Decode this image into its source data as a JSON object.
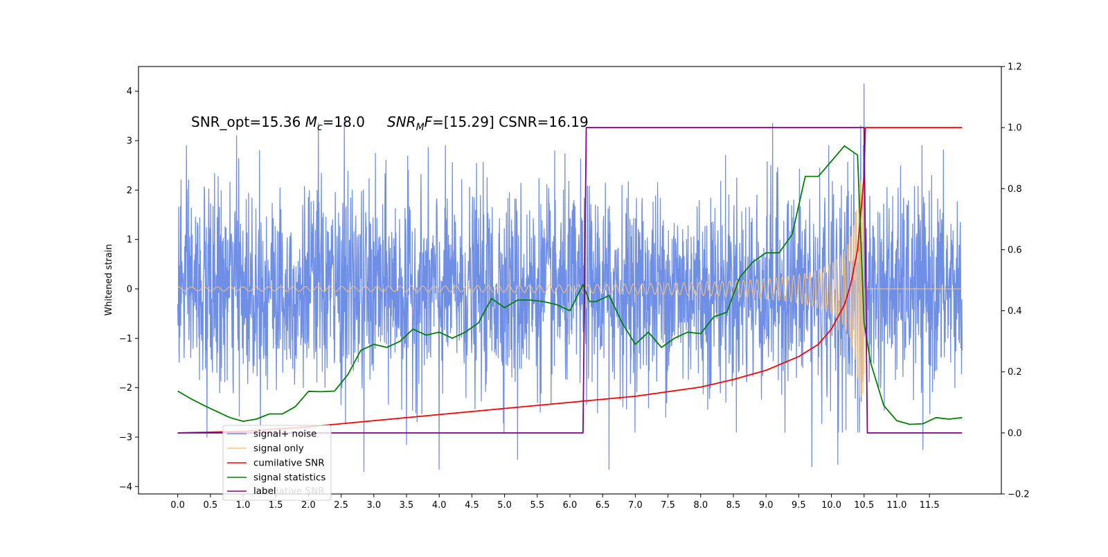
{
  "chart_data": {
    "type": "line",
    "title": "",
    "annotation": "SNR_opt=15.36 M_c=18.0 SNR_MF=[15.29] CSNR=16.19",
    "annotation_parts": {
      "prefix": "SNR_opt=15.36 ",
      "mc_symbol": "M",
      "mc_sub": "c",
      "mc_value": "=18.0",
      "mf_symbol": "SNR",
      "mf_sub": "M",
      "mf_after": "F",
      "mf_value": "=[15.29] CSNR=16.19"
    },
    "xlabel": "",
    "ylabel": "Whitened strain",
    "xlim": [
      -0.6,
      12.6
    ],
    "ylim": [
      -4.15,
      4.5
    ],
    "y2lim": [
      -0.2,
      1.2
    ],
    "xticks": [
      0.0,
      0.5,
      1.0,
      1.5,
      2.0,
      2.5,
      3.0,
      3.5,
      4.0,
      4.5,
      5.0,
      5.5,
      6.0,
      6.5,
      7.0,
      7.5,
      8.0,
      8.5,
      9.0,
      9.5,
      10.0,
      10.5,
      11.0,
      11.5
    ],
    "xtick_labels": [
      "0.0",
      "0.5",
      "1.0",
      "1.5",
      "2.0",
      "2.5",
      "3.0",
      "3.5",
      "4.0",
      "4.5",
      "5.0",
      "5.5",
      "6.0",
      "6.5",
      "7.0",
      "7.5",
      "8.0",
      "8.5",
      "9.0",
      "9.5",
      "10.0",
      "10.5",
      "11.0",
      "11.5"
    ],
    "yticks": [
      -4,
      -3,
      -2,
      -1,
      0,
      1,
      2,
      3,
      4
    ],
    "ytick_labels": [
      "−4",
      "−3",
      "−2",
      "−1",
      "0",
      "1",
      "2",
      "3",
      "4"
    ],
    "y2ticks": [
      -0.2,
      0.0,
      0.2,
      0.4,
      0.6,
      0.8,
      1.0,
      1.2
    ],
    "y2tick_labels": [
      "−0.2",
      "0.0",
      "0.2",
      "0.4",
      "0.6",
      "0.8",
      "1.0",
      "1.2"
    ],
    "grid": false,
    "legend_placement": "lower-left",
    "legend": [
      "signal+ noise",
      "signal only",
      "cumilative SNR",
      "signal statistics",
      "label"
    ],
    "legend_ghost_label": "cumilative SNR",
    "colors": {
      "signal_noise": "#6f8ee6",
      "signal_only": "#ffc473",
      "cumulative_snr": "#ff0000",
      "signal_statistics": "#008000",
      "label": "#800080"
    },
    "series": [
      {
        "name": "signal+ noise",
        "axis": "left",
        "kind": "noise",
        "x_range": [
          0.0,
          12.0
        ],
        "sigma": 1.0,
        "peaks": [
          {
            "x": 0.05,
            "y": 2.2
          },
          {
            "x": 0.9,
            "y": 3.1
          },
          {
            "x": 1.25,
            "y": 2.8
          },
          {
            "x": 2.15,
            "y": 3.35
          },
          {
            "x": 2.55,
            "y": 3.4
          },
          {
            "x": 5.2,
            "y": 3.4
          },
          {
            "x": 9.1,
            "y": 3.35
          },
          {
            "x": 10.45,
            "y": 3.3
          },
          {
            "x": 10.5,
            "y": 4.15
          },
          {
            "x": 2.85,
            "y": -3.7
          },
          {
            "x": 3.5,
            "y": -3.15
          },
          {
            "x": 4.0,
            "y": -3.65
          },
          {
            "x": 5.2,
            "y": -3.45
          },
          {
            "x": 6.6,
            "y": -3.65
          },
          {
            "x": 9.7,
            "y": -3.6
          },
          {
            "x": 10.1,
            "y": -3.55
          },
          {
            "x": 11.4,
            "y": -3.25
          },
          {
            "x": 0.45,
            "y": -3.0
          }
        ]
      },
      {
        "name": "signal only",
        "axis": "left",
        "kind": "chirp",
        "x_range": [
          0.0,
          12.0
        ],
        "merger_time": 10.5,
        "amplitude_start": 0.04,
        "amplitude_peak": 2.2
      },
      {
        "name": "cumilative SNR",
        "axis": "right",
        "x": [
          0.0,
          1.0,
          2.0,
          3.0,
          4.0,
          5.0,
          6.0,
          7.0,
          7.5,
          8.0,
          8.5,
          9.0,
          9.5,
          9.8,
          10.0,
          10.2,
          10.3,
          10.4,
          10.45,
          10.5,
          10.52,
          11.0,
          12.0
        ],
        "values": [
          0.0,
          0.005,
          0.02,
          0.04,
          0.06,
          0.08,
          0.1,
          0.12,
          0.135,
          0.15,
          0.175,
          0.205,
          0.25,
          0.29,
          0.34,
          0.42,
          0.49,
          0.6,
          0.72,
          0.84,
          1.0,
          1.0,
          1.0
        ]
      },
      {
        "name": "signal statistics",
        "axis": "right",
        "x": [
          0.0,
          0.2,
          0.4,
          0.6,
          0.8,
          1.0,
          1.2,
          1.4,
          1.6,
          1.8,
          2.0,
          2.2,
          2.4,
          2.6,
          2.8,
          3.0,
          3.2,
          3.4,
          3.6,
          3.8,
          4.0,
          4.2,
          4.4,
          4.6,
          4.8,
          5.0,
          5.2,
          5.4,
          5.6,
          5.8,
          6.0,
          6.2,
          6.3,
          6.4,
          6.6,
          6.8,
          7.0,
          7.2,
          7.4,
          7.6,
          7.8,
          8.0,
          8.2,
          8.4,
          8.6,
          8.8,
          9.0,
          9.2,
          9.4,
          9.6,
          9.8,
          10.0,
          10.2,
          10.4,
          10.5,
          10.6,
          10.8,
          11.0,
          11.2,
          11.4,
          11.6,
          11.8,
          12.0
        ],
        "values": [
          0.137,
          0.112,
          0.09,
          0.07,
          0.05,
          0.038,
          0.045,
          0.062,
          0.062,
          0.086,
          0.136,
          0.135,
          0.137,
          0.19,
          0.27,
          0.29,
          0.28,
          0.3,
          0.34,
          0.32,
          0.33,
          0.31,
          0.33,
          0.36,
          0.44,
          0.41,
          0.435,
          0.435,
          0.43,
          0.42,
          0.4,
          0.486,
          0.43,
          0.43,
          0.45,
          0.36,
          0.29,
          0.33,
          0.28,
          0.31,
          0.33,
          0.325,
          0.38,
          0.395,
          0.51,
          0.56,
          0.59,
          0.59,
          0.65,
          0.84,
          0.84,
          0.89,
          0.94,
          0.91,
          0.36,
          0.23,
          0.09,
          0.04,
          0.028,
          0.03,
          0.05,
          0.045,
          0.05
        ]
      },
      {
        "name": "label",
        "axis": "right",
        "x": [
          0.0,
          6.2,
          6.25,
          10.5,
          10.55,
          12.0
        ],
        "values": [
          0.0,
          0.0,
          1.0,
          1.0,
          0.0,
          0.0
        ]
      }
    ]
  }
}
